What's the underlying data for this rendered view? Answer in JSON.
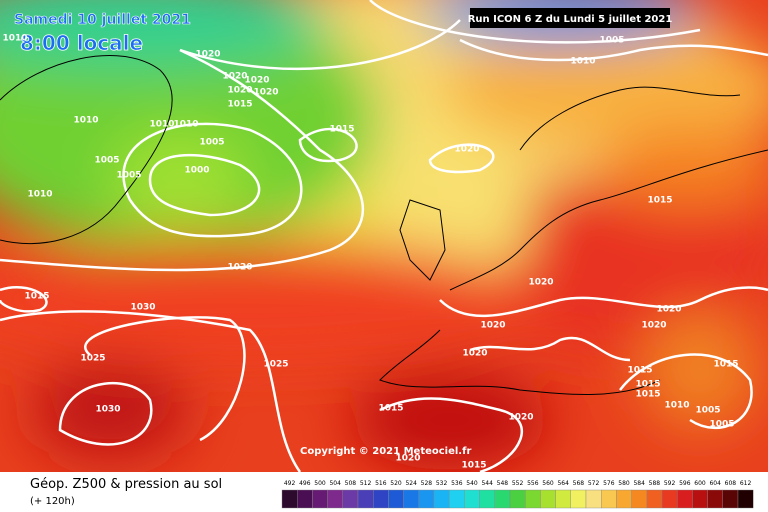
{
  "header": {
    "date": "Samedi 10 juillet 2021",
    "time": "8:00 locale",
    "run": "Run ICON 6 Z du Lundi 5 juillet 2021"
  },
  "isobars": [
    "1010",
    "1020",
    "1020",
    "1020",
    "1020",
    "1020",
    "1015",
    "1010",
    "1010",
    "1010",
    "1015",
    "1005",
    "1020",
    "1005",
    "1005",
    "1000",
    "1010",
    "1015",
    "1020",
    "1015",
    "1020",
    "1030",
    "1020",
    "1020",
    "1020",
    "1020",
    "1025",
    "1025",
    "1015",
    "1015",
    "1015",
    "1015",
    "1010",
    "1005",
    "1030",
    "1015",
    "1020",
    "1005",
    "1020",
    "1015",
    "1005",
    "1010"
  ],
  "copyright": "Copyright © 2021 Meteociel.fr",
  "footer": {
    "title": "Géop. Z500 & pression au sol",
    "subtitle": "(+ 120h)"
  },
  "scale": [
    {
      "label": "492",
      "color": "#2b0a2e"
    },
    {
      "label": "496",
      "color": "#4a0f52"
    },
    {
      "label": "500",
      "color": "#661a73"
    },
    {
      "label": "504",
      "color": "#7d2a8c"
    },
    {
      "label": "508",
      "color": "#6b3aa6"
    },
    {
      "label": "512",
      "color": "#4b3fb8"
    },
    {
      "label": "516",
      "color": "#2f44c4"
    },
    {
      "label": "520",
      "color": "#1f5ad6"
    },
    {
      "label": "524",
      "color": "#1a78e6"
    },
    {
      "label": "528",
      "color": "#1a96f0"
    },
    {
      "label": "532",
      "color": "#1ab4f5"
    },
    {
      "label": "536",
      "color": "#1fd0f0"
    },
    {
      "label": "540",
      "color": "#1fe0d0"
    },
    {
      "label": "544",
      "color": "#1fe0a0"
    },
    {
      "label": "548",
      "color": "#2ad870"
    },
    {
      "label": "552",
      "color": "#4ad040"
    },
    {
      "label": "556",
      "color": "#7ad830"
    },
    {
      "label": "560",
      "color": "#a8e030"
    },
    {
      "label": "564",
      "color": "#d0ea40"
    },
    {
      "label": "568",
      "color": "#f0f060"
    },
    {
      "label": "572",
      "color": "#f8e080"
    },
    {
      "label": "576",
      "color": "#f8c850"
    },
    {
      "label": "580",
      "color": "#f8a830"
    },
    {
      "label": "584",
      "color": "#f58820"
    },
    {
      "label": "588",
      "color": "#f06020"
    },
    {
      "label": "592",
      "color": "#e83a20"
    },
    {
      "label": "596",
      "color": "#d81e1e"
    },
    {
      "label": "600",
      "color": "#b81010"
    },
    {
      "label": "604",
      "color": "#8a0a0a"
    },
    {
      "label": "608",
      "color": "#5a0505"
    },
    {
      "label": "612",
      "color": "#200000"
    }
  ]
}
